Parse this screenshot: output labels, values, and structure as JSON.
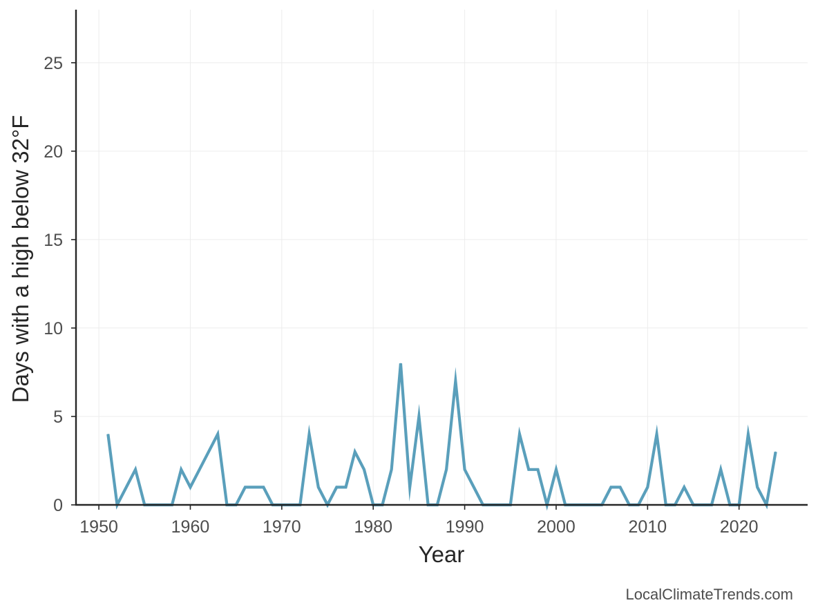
{
  "chart_data": {
    "type": "line",
    "xlabel": "Year",
    "ylabel": "Days with a high below 32°F",
    "xlim": [
      1947.5,
      2027.5
    ],
    "ylim": [
      0,
      28
    ],
    "xticks": [
      1950,
      1960,
      1970,
      1980,
      1990,
      2000,
      2010,
      2020
    ],
    "yticks": [
      0,
      5,
      10,
      15,
      20,
      25
    ],
    "grid": true,
    "line_color": "#5a9fbb",
    "x": [
      1951,
      1952,
      1953,
      1954,
      1955,
      1956,
      1957,
      1958,
      1959,
      1960,
      1961,
      1962,
      1963,
      1964,
      1965,
      1966,
      1967,
      1968,
      1969,
      1970,
      1971,
      1972,
      1973,
      1974,
      1975,
      1976,
      1977,
      1978,
      1979,
      1980,
      1981,
      1982,
      1983,
      1984,
      1985,
      1986,
      1987,
      1988,
      1989,
      1990,
      1991,
      1992,
      1993,
      1994,
      1995,
      1996,
      1997,
      1998,
      1999,
      2000,
      2001,
      2002,
      2003,
      2004,
      2005,
      2006,
      2007,
      2008,
      2009,
      2010,
      2011,
      2012,
      2013,
      2014,
      2015,
      2016,
      2017,
      2018,
      2019,
      2020,
      2021,
      2022,
      2023,
      2024
    ],
    "values": [
      4,
      0,
      1,
      2,
      0,
      0,
      0,
      0,
      2,
      1,
      2,
      3,
      4,
      0,
      0,
      1,
      1,
      1,
      0,
      0,
      0,
      0,
      4,
      1,
      0,
      1,
      1,
      3,
      2,
      0,
      0,
      2,
      8,
      1,
      5,
      0,
      0,
      2,
      7,
      2,
      1,
      0,
      0,
      0,
      0,
      4,
      2,
      2,
      0,
      2,
      0,
      0,
      0,
      0,
      0,
      1,
      1,
      0,
      0,
      1,
      4,
      0,
      0,
      1,
      0,
      0,
      0,
      2,
      0,
      0,
      4,
      1,
      0,
      3
    ]
  },
  "watermark": "LocalClimateTrends.com"
}
